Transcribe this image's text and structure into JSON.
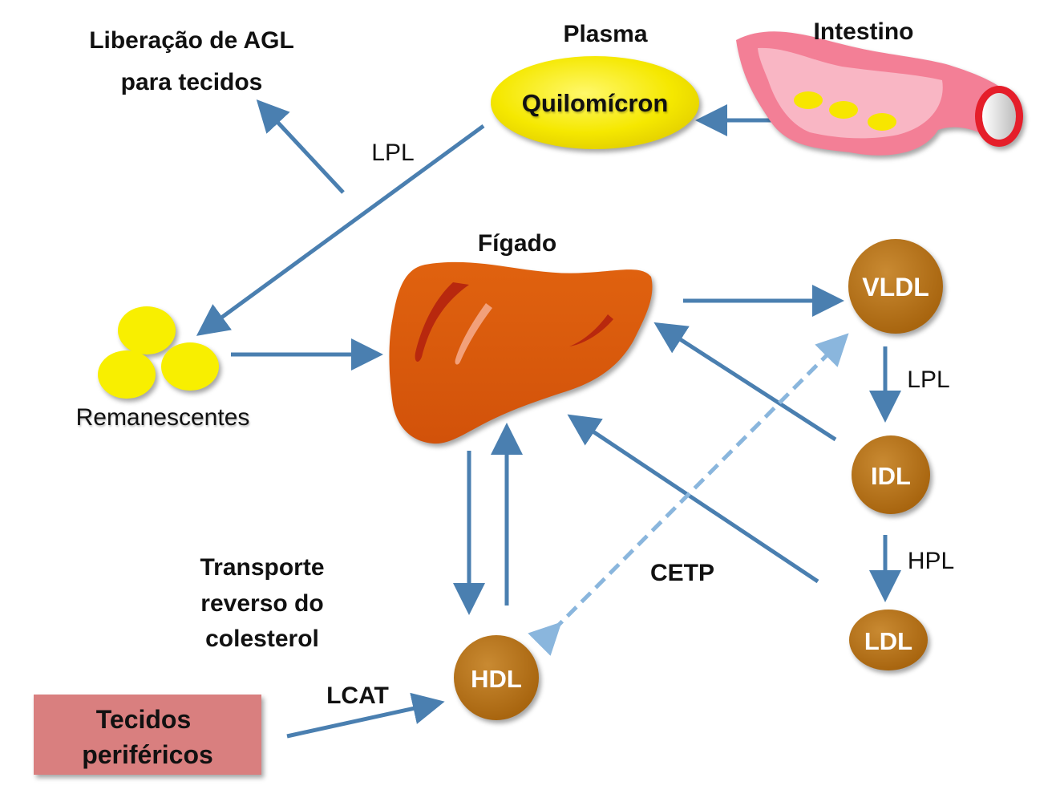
{
  "title": {
    "release_line1": "Liberação de AGL",
    "release_line2": "para tecidos"
  },
  "labels": {
    "plasma": "Plasma",
    "intestino": "Intestino",
    "figado": "Fígado",
    "remanescentes": "Remanescentes",
    "transporte_line1": "Transporte",
    "transporte_line2": "reverso do",
    "transporte_line3": "colesterol",
    "tecidos_line1": "Tecidos",
    "tecidos_line2": "periféricos"
  },
  "nodes": {
    "quilomicron": "Quilomícron",
    "vldl": "VLDL",
    "idl": "IDL",
    "ldl": "LDL",
    "hdl": "HDL"
  },
  "enzymes": {
    "lpl_top": "LPL",
    "lpl_right": "LPL",
    "hpl": "HPL",
    "cetp": "CETP",
    "lcat": "LCAT"
  },
  "colors": {
    "arrow": "#4a7fb0",
    "dashed_arrow": "#8ab6dd",
    "lipoprotein": "#b8741c",
    "quilomicron": "#f5e800",
    "remnant": "#f8ef00",
    "liver": "#d95a0e",
    "tecidos_box": "#d97f7f",
    "intestine": "#f37f96"
  }
}
